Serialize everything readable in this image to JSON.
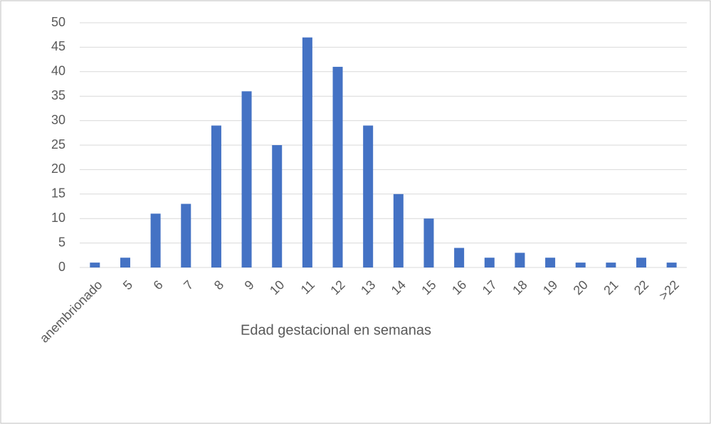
{
  "chart_data": {
    "type": "bar",
    "x_label": "Edad gestacional en semanas",
    "categories": [
      "anembrionado",
      "5",
      "6",
      "7",
      "8",
      "9",
      "10",
      "11",
      "12",
      "13",
      "14",
      "15",
      "16",
      "17",
      "18",
      "19",
      "20",
      "21",
      "22",
      ">22"
    ],
    "values": [
      1,
      2,
      11,
      13,
      29,
      36,
      25,
      47,
      41,
      29,
      15,
      10,
      4,
      2,
      3,
      2,
      1,
      1,
      2,
      1
    ],
    "color": "#4472c4",
    "ylim": [
      0,
      50
    ],
    "yticks": [
      0,
      5,
      10,
      15,
      20,
      25,
      30,
      35,
      40,
      45,
      50
    ],
    "grid": true
  }
}
